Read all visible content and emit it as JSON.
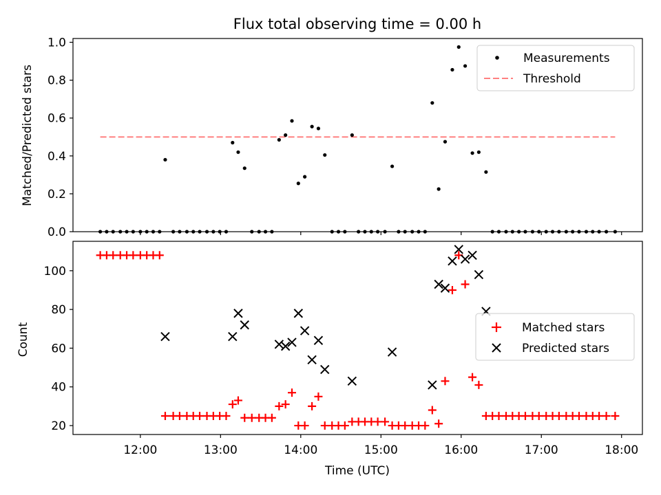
{
  "chart_data": [
    {
      "type": "scatter",
      "title": "Flux total observing time = 0.00 h",
      "xlabel": "",
      "ylabel": "Matched/Predicted stars",
      "xlim": [
        11.16,
        18.26
      ],
      "ylim": [
        0.0,
        1.02
      ],
      "yticks": [
        0.0,
        0.2,
        0.4,
        0.6,
        0.8,
        1.0
      ],
      "ytick_labels": [
        "0.0",
        "0.2",
        "0.4",
        "0.6",
        "0.8",
        "1.0"
      ],
      "legend": {
        "position": "top-right",
        "entries": [
          "Measurements",
          "Threshold"
        ]
      },
      "threshold": {
        "name": "Threshold",
        "value": 0.5,
        "x_range": [
          11.5,
          17.92
        ],
        "color": "#ff8080"
      },
      "series": [
        {
          "name": "Measurements",
          "color": "#000000",
          "x": [
            11.5,
            11.58,
            11.66,
            11.75,
            11.83,
            11.91,
            12.0,
            12.08,
            12.16,
            12.24,
            12.31,
            12.41,
            12.49,
            12.58,
            12.66,
            12.74,
            12.83,
            12.91,
            12.99,
            13.07,
            13.15,
            13.22,
            13.3,
            13.39,
            13.48,
            13.56,
            13.64,
            13.73,
            13.81,
            13.89,
            13.97,
            14.05,
            14.14,
            14.22,
            14.3,
            14.39,
            14.47,
            14.55,
            14.64,
            14.72,
            14.8,
            14.88,
            14.96,
            15.05,
            15.14,
            15.22,
            15.3,
            15.39,
            15.47,
            15.55,
            15.64,
            15.72,
            15.8,
            15.89,
            15.97,
            16.05,
            16.14,
            16.22,
            16.31,
            16.39,
            16.47,
            16.56,
            16.64,
            16.72,
            16.8,
            16.89,
            16.97,
            17.06,
            17.14,
            17.22,
            17.31,
            17.39,
            17.47,
            17.56,
            17.64,
            17.72,
            17.81,
            17.92
          ],
          "y": [
            0,
            0,
            0,
            0,
            0,
            0,
            0,
            0,
            0,
            0,
            0.38,
            0,
            0,
            0,
            0,
            0,
            0,
            0,
            0,
            0,
            0.47,
            0.42,
            0.335,
            0,
            0,
            0,
            0,
            0.485,
            0.51,
            0.585,
            0.255,
            0.29,
            0.555,
            0.545,
            0.405,
            0,
            0,
            0,
            0.51,
            0,
            0,
            0,
            0,
            0,
            0.345,
            0,
            0,
            0,
            0,
            0,
            0.68,
            0.225,
            0.475,
            0.855,
            0.975,
            0.875,
            0.415,
            0.42,
            0.315,
            0,
            0,
            0,
            0,
            0,
            0,
            0,
            0,
            0,
            0,
            0,
            0,
            0,
            0,
            0,
            0,
            0,
            0,
            0
          ]
        }
      ]
    },
    {
      "type": "scatter",
      "title": "",
      "xlabel": "Time (UTC)",
      "ylabel": "Count",
      "xlim": [
        11.16,
        18.26
      ],
      "ylim": [
        15.4,
        115.2
      ],
      "xticks": [
        12,
        13,
        14,
        15,
        16,
        17,
        18
      ],
      "xtick_labels": [
        "12:00",
        "13:00",
        "14:00",
        "15:00",
        "16:00",
        "17:00",
        "18:00"
      ],
      "yticks": [
        20,
        40,
        60,
        80,
        100
      ],
      "ytick_labels": [
        "20",
        "40",
        "60",
        "80",
        "100"
      ],
      "legend": {
        "position": "center-right",
        "entries": [
          "Matched stars",
          "Predicted stars"
        ]
      },
      "series": [
        {
          "name": "Matched stars",
          "marker": "plus",
          "color": "#ff0000",
          "x": [
            11.5,
            11.58,
            11.66,
            11.75,
            11.83,
            11.91,
            12.0,
            12.08,
            12.16,
            12.24,
            12.31,
            12.41,
            12.49,
            12.58,
            12.66,
            12.74,
            12.83,
            12.91,
            12.99,
            13.07,
            13.15,
            13.22,
            13.3,
            13.39,
            13.48,
            13.56,
            13.64,
            13.73,
            13.81,
            13.89,
            13.97,
            14.05,
            14.14,
            14.22,
            14.3,
            14.39,
            14.47,
            14.55,
            14.64,
            14.72,
            14.8,
            14.88,
            14.96,
            15.05,
            15.14,
            15.22,
            15.3,
            15.39,
            15.47,
            15.55,
            15.64,
            15.72,
            15.8,
            15.89,
            15.97,
            16.05,
            16.14,
            16.22,
            16.31,
            16.39,
            16.47,
            16.56,
            16.64,
            16.72,
            16.8,
            16.89,
            16.97,
            17.06,
            17.14,
            17.22,
            17.31,
            17.39,
            17.47,
            17.56,
            17.64,
            17.72,
            17.81,
            17.92
          ],
          "y": [
            108,
            108,
            108,
            108,
            108,
            108,
            108,
            108,
            108,
            108,
            25,
            25,
            25,
            25,
            25,
            25,
            25,
            25,
            25,
            25,
            31,
            33,
            24,
            24,
            24,
            24,
            24,
            30,
            31,
            37,
            20,
            20,
            30,
            35,
            20,
            20,
            20,
            20,
            22,
            22,
            22,
            22,
            22,
            22,
            20,
            20,
            20,
            20,
            20,
            20,
            28,
            21,
            43,
            90,
            108,
            93,
            45,
            41,
            25,
            25,
            25,
            25,
            25,
            25,
            25,
            25,
            25,
            25,
            25,
            25,
            25,
            25,
            25,
            25,
            25,
            25,
            25,
            25
          ]
        },
        {
          "name": "Predicted stars",
          "marker": "x",
          "color": "#000000",
          "x": [
            12.31,
            13.15,
            13.22,
            13.3,
            13.73,
            13.81,
            13.89,
            13.97,
            14.05,
            14.14,
            14.22,
            14.3,
            14.64,
            15.14,
            15.64,
            15.72,
            15.8,
            15.89,
            15.97,
            16.05,
            16.14,
            16.22,
            16.31
          ],
          "y": [
            66,
            66,
            78,
            72,
            62,
            61,
            63,
            78,
            69,
            54,
            64,
            49,
            43,
            58,
            41,
            93,
            91,
            105,
            111,
            106,
            108,
            98,
            79
          ]
        }
      ]
    }
  ]
}
